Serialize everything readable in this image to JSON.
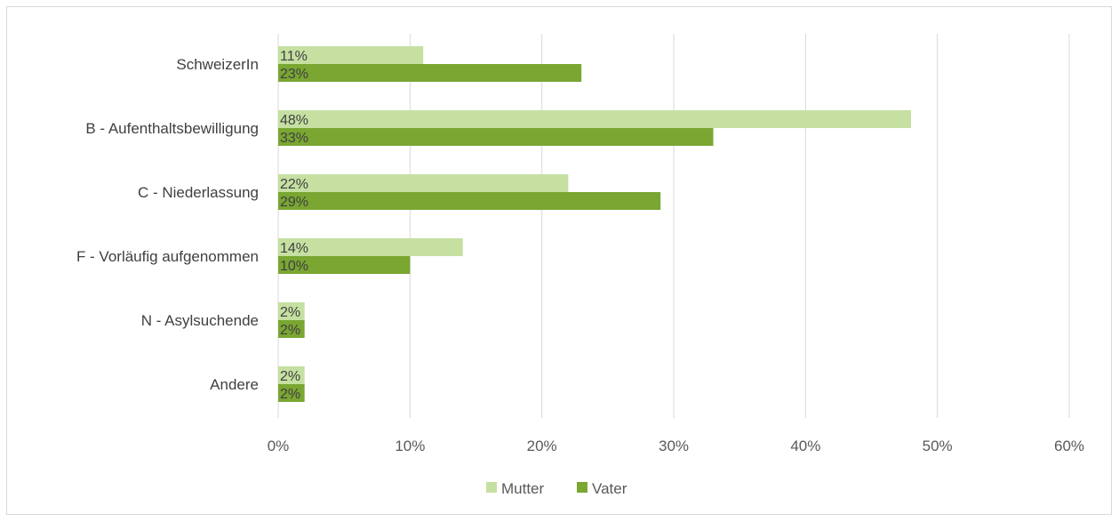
{
  "chart_data": {
    "type": "bar",
    "orientation": "horizontal",
    "categories": [
      "SchweizerIn",
      "B - Aufenthaltsbewilligung",
      "C - Niederlassung",
      "F - Vorläufig aufgenommen",
      "N - Asylsuchende",
      "Andere"
    ],
    "series": [
      {
        "name": "Mutter",
        "values": [
          11,
          48,
          22,
          14,
          2,
          2
        ],
        "labels": [
          "11%",
          "48%",
          "22%",
          "14%",
          "2%",
          "2%"
        ],
        "color": "#c5e0a0"
      },
      {
        "name": "Vater",
        "values": [
          23,
          33,
          29,
          10,
          2,
          2
        ],
        "labels": [
          "23%",
          "33%",
          "29%",
          "10%",
          "2%",
          "2%"
        ],
        "color": "#7aa632"
      }
    ],
    "xlim": [
      0,
      60
    ],
    "x_ticks": [
      "0%",
      "10%",
      "20%",
      "30%",
      "40%",
      "50%",
      "60%"
    ],
    "grid": "vertical",
    "legend_position": "bottom",
    "title": "",
    "xlabel": "",
    "ylabel": ""
  }
}
